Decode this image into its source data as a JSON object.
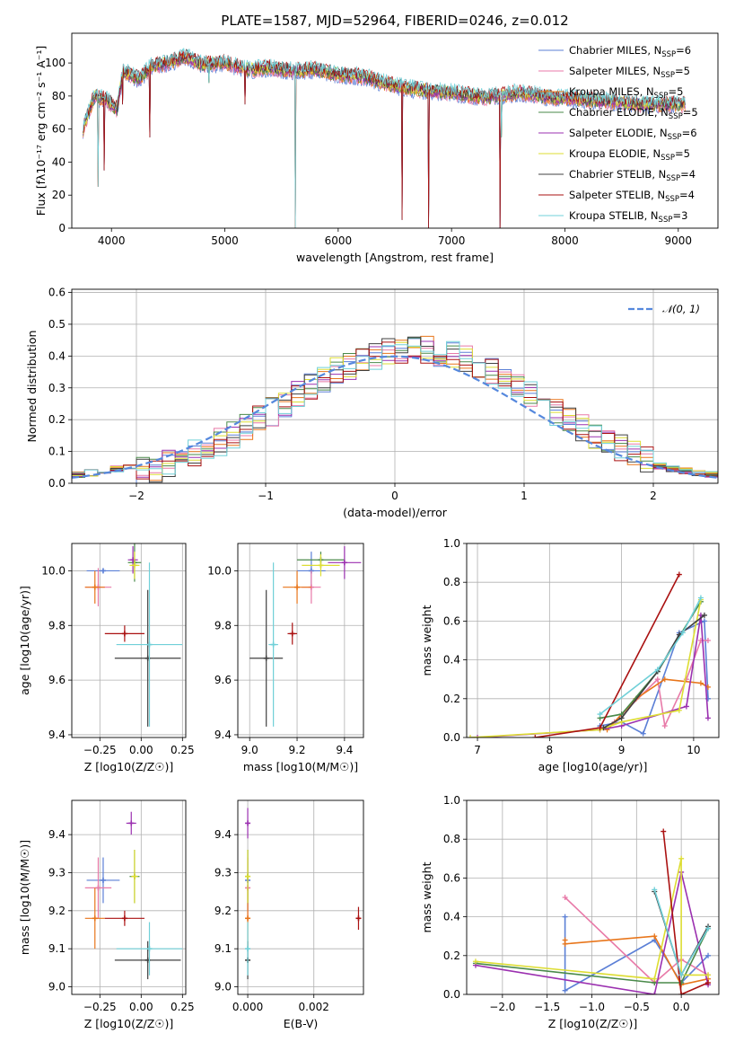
{
  "figure": {
    "title": "PLATE=1587, MJD=52964, FIBERID=0246, z=0.012"
  },
  "model_colors": [
    "#5b7fd6",
    "#e87aa8",
    "#e8751a",
    "#4a8a4a",
    "#9b30b0",
    "#dddd33",
    "#404040",
    "#aa1111",
    "#70d0d8"
  ],
  "legend": [
    {
      "label": "Chabrier MILES, N",
      "sub": "SSP",
      "suffix": "=6",
      "color": "#5b7fd6"
    },
    {
      "label": "Salpeter MILES, N",
      "sub": "SSP",
      "suffix": "=5",
      "color": "#e87aa8"
    },
    {
      "label": "Kroupa MILES, N",
      "sub": "SSP",
      "suffix": "=5",
      "color": "#e8751a"
    },
    {
      "label": "Chabrier ELODIE, N",
      "sub": "SSP",
      "suffix": "=5",
      "color": "#4a8a4a"
    },
    {
      "label": "Salpeter ELODIE, N",
      "sub": "SSP",
      "suffix": "=6",
      "color": "#9b30b0"
    },
    {
      "label": "Kroupa ELODIE, N",
      "sub": "SSP",
      "suffix": "=5",
      "color": "#dddd33"
    },
    {
      "label": "Chabrier STELIB, N",
      "sub": "SSP",
      "suffix": "=4",
      "color": "#404040"
    },
    {
      "label": "Salpeter STELIB, N",
      "sub": "SSP",
      "suffix": "=4",
      "color": "#aa1111"
    },
    {
      "label": "Kroupa STELIB, N",
      "sub": "SSP",
      "suffix": "=3",
      "color": "#70d0d8"
    }
  ],
  "chart_data": [
    {
      "type": "line",
      "xlabel": "wavelength [Angstrom, rest frame]",
      "ylabel": "Flux [fλ10⁻¹⁷ erg cm⁻² s⁻¹ A⁻¹]",
      "xlim": [
        3650,
        9350
      ],
      "ylim": [
        0,
        118
      ],
      "xticks": [
        4000,
        5000,
        6000,
        7000,
        8000,
        9000
      ],
      "yticks": [
        0,
        20,
        40,
        60,
        80,
        100
      ],
      "grid": false,
      "legend_position": "top-right",
      "spectrum_knots": [
        [
          3750,
          60
        ],
        [
          3850,
          80
        ],
        [
          3950,
          78
        ],
        [
          4050,
          72
        ],
        [
          4100,
          95
        ],
        [
          4250,
          90
        ],
        [
          4350,
          98
        ],
        [
          4500,
          100
        ],
        [
          4650,
          104
        ],
        [
          4800,
          99
        ],
        [
          5000,
          100
        ],
        [
          5200,
          96
        ],
        [
          5400,
          97
        ],
        [
          5600,
          95
        ],
        [
          5800,
          96
        ],
        [
          6000,
          93
        ],
        [
          6200,
          92
        ],
        [
          6500,
          86
        ],
        [
          6800,
          83
        ],
        [
          7000,
          82
        ],
        [
          7300,
          79
        ],
        [
          7600,
          82
        ],
        [
          7900,
          79
        ],
        [
          8300,
          77
        ],
        [
          8700,
          75
        ],
        [
          9050,
          75
        ]
      ],
      "dips": [
        [
          3880,
          25
        ],
        [
          3935,
          35
        ],
        [
          4100,
          75
        ],
        [
          4340,
          55
        ],
        [
          4860,
          88
        ],
        [
          5180,
          75
        ],
        [
          5620,
          0
        ],
        [
          6563,
          5
        ],
        [
          6800,
          0
        ],
        [
          7430,
          0
        ],
        [
          7440,
          55
        ]
      ]
    },
    {
      "type": "line",
      "xlabel": "(data-model)/error",
      "ylabel": "Normed distribution",
      "xlim": [
        -2.5,
        2.5
      ],
      "ylim": [
        0,
        0.61
      ],
      "xticks": [
        -2,
        -1,
        0,
        1,
        2
      ],
      "yticks": [
        0.0,
        0.1,
        0.2,
        0.3,
        0.4,
        0.5,
        0.6
      ],
      "grid": true,
      "legend_position": "top-right",
      "series": [
        {
          "name": "N(0,1)",
          "style": "dashed",
          "color": "#5588dd"
        }
      ],
      "hist_bins": {
        "start": -2.5,
        "width": 0.1
      }
    },
    {
      "type": "scatter",
      "xlabel": "Z [log10(Z/Z☉)]",
      "ylabel": "age [log10(age/yr)]",
      "xlim": [
        -0.42,
        0.27
      ],
      "ylim": [
        9.39,
        10.1
      ],
      "xticks": [
        -0.25,
        0.0,
        0.25
      ],
      "yticks": [
        9.4,
        9.6,
        9.8,
        10.0
      ],
      "grid": true,
      "points": [
        {
          "x": -0.23,
          "y": 10.0,
          "xerr": 0.1,
          "yerr": 0.0,
          "color": "#5b7fd6"
        },
        {
          "x": -0.26,
          "y": 9.94,
          "xerr": 0.08,
          "yerr": 0.07,
          "color": "#e87aa8"
        },
        {
          "x": -0.28,
          "y": 9.94,
          "xerr": 0.06,
          "yerr": 0.06,
          "color": "#e8751a"
        },
        {
          "x": -0.04,
          "y": 10.03,
          "xerr": 0.04,
          "yerr": 0.07,
          "color": "#4a8a4a"
        },
        {
          "x": -0.05,
          "y": 10.04,
          "xerr": 0.03,
          "yerr": 0.05,
          "color": "#9b30b0"
        },
        {
          "x": -0.04,
          "y": 10.02,
          "xerr": 0.03,
          "yerr": 0.05,
          "color": "#dddd33"
        },
        {
          "x": 0.04,
          "y": 9.68,
          "xerr": 0.2,
          "yerr": 0.25,
          "color": "#404040"
        },
        {
          "x": -0.1,
          "y": 9.77,
          "xerr": 0.12,
          "yerr": 0.03,
          "color": "#aa1111"
        },
        {
          "x": 0.05,
          "y": 9.73,
          "xerr": 0.2,
          "yerr": 0.3,
          "color": "#70d0d8"
        }
      ]
    },
    {
      "type": "scatter",
      "xlabel": "mass [log10(M/M☉)]",
      "ylabel": "",
      "xlim": [
        8.95,
        9.48
      ],
      "ylim": [
        9.39,
        10.1
      ],
      "xticks": [
        9.0,
        9.2,
        9.4
      ],
      "yticks": [
        9.4,
        9.6,
        9.8,
        10.0
      ],
      "grid": true,
      "points": [
        {
          "x": 9.26,
          "y": 10.0,
          "xerr": 0.06,
          "yerr": 0.07,
          "color": "#5b7fd6"
        },
        {
          "x": 9.26,
          "y": 9.94,
          "xerr": 0.04,
          "yerr": 0.06,
          "color": "#e87aa8"
        },
        {
          "x": 9.2,
          "y": 9.94,
          "xerr": 0.06,
          "yerr": 0.06,
          "color": "#e8751a"
        },
        {
          "x": 9.3,
          "y": 10.04,
          "xerr": 0.1,
          "yerr": 0.03,
          "color": "#4a8a4a"
        },
        {
          "x": 9.4,
          "y": 10.03,
          "xerr": 0.07,
          "yerr": 0.06,
          "color": "#9b30b0"
        },
        {
          "x": 9.3,
          "y": 10.02,
          "xerr": 0.08,
          "yerr": 0.04,
          "color": "#dddd33"
        },
        {
          "x": 9.07,
          "y": 9.68,
          "xerr": 0.07,
          "yerr": 0.25,
          "color": "#404040"
        },
        {
          "x": 9.18,
          "y": 9.77,
          "xerr": 0.02,
          "yerr": 0.04,
          "color": "#aa1111"
        },
        {
          "x": 9.1,
          "y": 9.73,
          "xerr": 0.02,
          "yerr": 0.3,
          "color": "#70d0d8"
        }
      ]
    },
    {
      "type": "line",
      "xlabel": "age  [log10(age/yr)]",
      "ylabel": "mass weight",
      "xlim": [
        6.85,
        10.35
      ],
      "ylim": [
        0,
        1.0
      ],
      "xticks": [
        7,
        8,
        9,
        10
      ],
      "yticks": [
        0.0,
        0.2,
        0.4,
        0.6,
        0.8,
        1.0
      ],
      "grid": true,
      "series": [
        {
          "color": "#5b7fd6",
          "points": [
            [
              8.7,
              0.06
            ],
            [
              9.0,
              0.08
            ],
            [
              9.3,
              0.02
            ],
            [
              9.8,
              0.54
            ],
            [
              10.15,
              0.6
            ],
            [
              10.2,
              0.2
            ]
          ]
        },
        {
          "color": "#e87aa8",
          "points": [
            [
              8.9,
              0.08
            ],
            [
              9.5,
              0.3
            ],
            [
              9.6,
              0.06
            ],
            [
              9.9,
              0.3
            ],
            [
              10.1,
              0.5
            ],
            [
              10.2,
              0.5
            ]
          ]
        },
        {
          "color": "#e8751a",
          "points": [
            [
              8.8,
              0.04
            ],
            [
              9.2,
              0.2
            ],
            [
              9.6,
              0.3
            ],
            [
              10.1,
              0.28
            ],
            [
              10.2,
              0.26
            ]
          ]
        },
        {
          "color": "#4a8a4a",
          "points": [
            [
              8.7,
              0.1
            ],
            [
              9.0,
              0.12
            ],
            [
              9.5,
              0.34
            ],
            [
              10.1,
              0.7
            ]
          ]
        },
        {
          "color": "#9b30b0",
          "points": [
            [
              7.0,
              0.0
            ],
            [
              8.7,
              0.04
            ],
            [
              9.0,
              0.06
            ],
            [
              9.9,
              0.16
            ],
            [
              10.1,
              0.63
            ],
            [
              10.2,
              0.1
            ]
          ]
        },
        {
          "color": "#dddd33",
          "points": [
            [
              6.9,
              0.0
            ],
            [
              8.7,
              0.04
            ],
            [
              9.0,
              0.08
            ],
            [
              9.8,
              0.14
            ],
            [
              10.1,
              0.71
            ]
          ]
        },
        {
          "color": "#404040",
          "points": [
            [
              8.75,
              0.05
            ],
            [
              9.0,
              0.1
            ],
            [
              9.5,
              0.34
            ],
            [
              9.8,
              0.53
            ],
            [
              10.15,
              0.63
            ]
          ]
        },
        {
          "color": "#aa1111",
          "points": [
            [
              7.8,
              0.0
            ],
            [
              8.7,
              0.05
            ],
            [
              9.8,
              0.84
            ]
          ]
        },
        {
          "color": "#70d0d8",
          "points": [
            [
              8.7,
              0.12
            ],
            [
              9.5,
              0.35
            ],
            [
              9.85,
              0.54
            ],
            [
              10.1,
              0.72
            ]
          ]
        }
      ]
    },
    {
      "type": "scatter",
      "xlabel": "Z [log10(Z/Z☉)]",
      "ylabel": "mass [log10(M/M☉)]",
      "xlim": [
        -0.42,
        0.27
      ],
      "ylim": [
        8.98,
        9.49
      ],
      "xticks": [
        -0.25,
        0.0,
        0.25
      ],
      "yticks": [
        9.0,
        9.1,
        9.2,
        9.3,
        9.4
      ],
      "grid": true,
      "points": [
        {
          "x": -0.23,
          "y": 9.28,
          "xerr": 0.1,
          "yerr": 0.06,
          "color": "#5b7fd6"
        },
        {
          "x": -0.26,
          "y": 9.26,
          "xerr": 0.08,
          "yerr": 0.08,
          "color": "#e87aa8"
        },
        {
          "x": -0.28,
          "y": 9.18,
          "xerr": 0.06,
          "yerr": 0.08,
          "color": "#e8751a"
        },
        {
          "x": -0.04,
          "y": 9.29,
          "xerr": 0.03,
          "yerr": 0.07,
          "color": "#4a8a4a"
        },
        {
          "x": -0.06,
          "y": 9.43,
          "xerr": 0.03,
          "yerr": 0.03,
          "color": "#9b30b0"
        },
        {
          "x": -0.04,
          "y": 9.29,
          "xerr": 0.02,
          "yerr": 0.07,
          "color": "#dddd33"
        },
        {
          "x": 0.04,
          "y": 9.07,
          "xerr": 0.2,
          "yerr": 0.05,
          "color": "#404040"
        },
        {
          "x": -0.1,
          "y": 9.18,
          "xerr": 0.12,
          "yerr": 0.02,
          "color": "#aa1111"
        },
        {
          "x": 0.05,
          "y": 9.1,
          "xerr": 0.2,
          "yerr": 0.07,
          "color": "#70d0d8"
        }
      ]
    },
    {
      "type": "scatter",
      "xlabel": "E(B-V)",
      "ylabel": "",
      "xlim": [
        -0.0003,
        0.0035
      ],
      "ylim": [
        8.98,
        9.49
      ],
      "xticks": [
        0.0,
        0.002
      ],
      "xtick_labels": [
        "0.000",
        "0.002"
      ],
      "yticks": [
        9.0,
        9.1,
        9.2,
        9.3,
        9.4
      ],
      "grid": true,
      "points": [
        {
          "x": 0.0,
          "y": 9.28,
          "yerr": 0.08,
          "color": "#5b7fd6"
        },
        {
          "x": 0.0,
          "y": 9.26,
          "yerr": 0.08,
          "color": "#e87aa8"
        },
        {
          "x": 0.0,
          "y": 9.18,
          "yerr": 0.08,
          "color": "#e8751a"
        },
        {
          "x": 0.0,
          "y": 9.29,
          "yerr": 0.07,
          "color": "#4a8a4a"
        },
        {
          "x": 0.0,
          "y": 9.43,
          "yerr": 0.04,
          "color": "#9b30b0"
        },
        {
          "x": 0.0,
          "y": 9.29,
          "yerr": 0.07,
          "color": "#dddd33"
        },
        {
          "x": 0.0,
          "y": 9.07,
          "yerr": 0.05,
          "color": "#404040"
        },
        {
          "x": 0.00335,
          "y": 9.18,
          "yerr": 0.03,
          "color": "#aa1111"
        },
        {
          "x": 0.0,
          "y": 9.1,
          "yerr": 0.07,
          "color": "#70d0d8"
        }
      ]
    },
    {
      "type": "line",
      "xlabel": "Z [log10(Z/Z☉)]",
      "ylabel": "mass weight",
      "xlim": [
        -2.4,
        0.42
      ],
      "ylim": [
        0,
        1.0
      ],
      "xticks": [
        -2.0,
        -1.5,
        -1.0,
        -0.5,
        0.0
      ],
      "yticks": [
        0.0,
        0.2,
        0.4,
        0.6,
        0.8,
        1.0
      ],
      "grid": true,
      "series": [
        {
          "color": "#5b7fd6",
          "points": [
            [
              -1.3,
              0.4
            ],
            [
              -1.3,
              0.02
            ],
            [
              -0.3,
              0.28
            ],
            [
              0.0,
              0.06
            ],
            [
              0.3,
              0.2
            ]
          ]
        },
        {
          "color": "#e87aa8",
          "points": [
            [
              -1.3,
              0.5
            ],
            [
              -0.3,
              0.06
            ],
            [
              0.0,
              0.18
            ],
            [
              0.3,
              0.1
            ]
          ]
        },
        {
          "color": "#e8751a",
          "points": [
            [
              -1.3,
              0.28
            ],
            [
              -1.3,
              0.26
            ],
            [
              -0.3,
              0.3
            ],
            [
              0.0,
              0.05
            ],
            [
              0.3,
              0.08
            ]
          ]
        },
        {
          "color": "#4a8a4a",
          "points": [
            [
              -2.3,
              0.16
            ],
            [
              -0.3,
              0.06
            ],
            [
              0.0,
              0.06
            ],
            [
              0.3,
              0.34
            ]
          ]
        },
        {
          "color": "#9b30b0",
          "points": [
            [
              -2.3,
              0.15
            ],
            [
              -0.3,
              0.0
            ],
            [
              0.0,
              0.63
            ],
            [
              0.3,
              0.05
            ]
          ]
        },
        {
          "color": "#dddd33",
          "points": [
            [
              -2.3,
              0.17
            ],
            [
              -0.3,
              0.08
            ],
            [
              0.0,
              0.7
            ],
            [
              0.0,
              0.1
            ],
            [
              0.3,
              0.1
            ]
          ]
        },
        {
          "color": "#404040",
          "points": [
            [
              -0.3,
              0.53
            ],
            [
              0.0,
              0.1
            ],
            [
              0.3,
              0.35
            ]
          ]
        },
        {
          "color": "#aa1111",
          "points": [
            [
              -0.2,
              0.84
            ],
            [
              0.0,
              0.0
            ],
            [
              0.3,
              0.06
            ]
          ]
        },
        {
          "color": "#70d0d8",
          "points": [
            [
              -0.3,
              0.54
            ],
            [
              0.0,
              0.1
            ],
            [
              0.3,
              0.34
            ]
          ]
        }
      ]
    }
  ]
}
